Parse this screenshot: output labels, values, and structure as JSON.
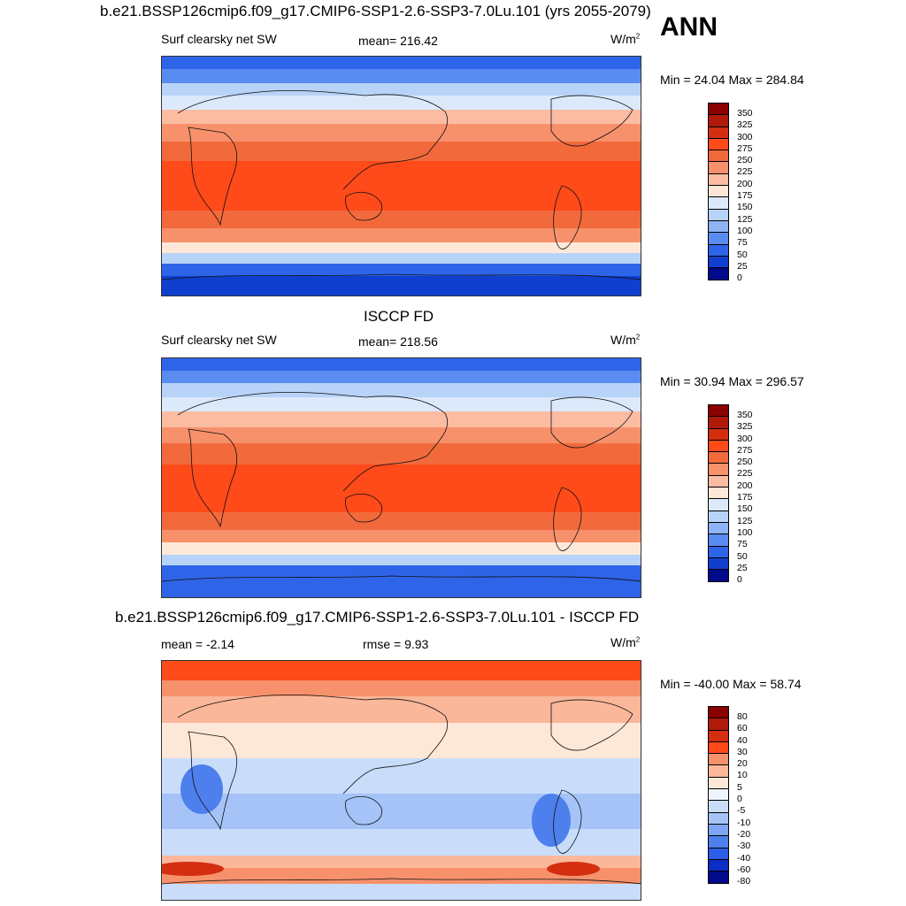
{
  "main_title": "b.e21.BSSP126cmip6.f09_g17.CMIP6-SSP1-2.6-SSP3-7.0Lu.101 (yrs 2055-2079)",
  "season": "ANN",
  "panels": [
    {
      "title": "",
      "left_label": "Surf clearsky net SW",
      "center_label": "mean= 216.42",
      "units": "W/m",
      "units_sup": "2",
      "minmax": "Min =  24.04 Max = 284.84",
      "colorbar_labels": [
        "350",
        "325",
        "300",
        "275",
        "250",
        "225",
        "200",
        "175",
        "150",
        "125",
        "100",
        "75",
        "50",
        "25",
        "0"
      ]
    },
    {
      "title": "ISCCP FD",
      "left_label": "Surf clearsky net SW",
      "center_label": "mean= 218.56",
      "units": "W/m",
      "units_sup": "2",
      "minmax": "Min =  30.94 Max = 296.57",
      "colorbar_labels": [
        "350",
        "325",
        "300",
        "275",
        "250",
        "225",
        "200",
        "175",
        "150",
        "125",
        "100",
        "75",
        "50",
        "25",
        "0"
      ]
    },
    {
      "title": "b.e21.BSSP126cmip6.f09_g17.CMIP6-SSP1-2.6-SSP3-7.0Lu.101 - ISCCP FD",
      "left_label": "mean =  -2.14",
      "center_label": "rmse =   9.93",
      "units": "W/m",
      "units_sup": "2",
      "minmax": "Min = -40.00 Max =  58.74",
      "colorbar_labels": [
        "80",
        "60",
        "40",
        "30",
        "20",
        "10",
        "5",
        "0",
        "-5",
        "-10",
        "-20",
        "-30",
        "-40",
        "-60",
        "-80"
      ]
    }
  ],
  "colors": {
    "abs_scale": [
      "#8b0000",
      "#b01a0a",
      "#d42e10",
      "#ff4a1a",
      "#f26a3c",
      "#f6916b",
      "#fbbca2",
      "#fde8d8",
      "#dbe9fb",
      "#b8d3f8",
      "#8fb3f5",
      "#5a8bf0",
      "#2e64e8",
      "#103fcf",
      "#000a8a"
    ],
    "diff_scale": [
      "#8b0000",
      "#b01a0a",
      "#d42e10",
      "#ff4a1a",
      "#f6916b",
      "#fab79a",
      "#fde8d8",
      "#f0f4ff",
      "#c9ddfb",
      "#a5c3f7",
      "#7ea6f3",
      "#4d80ed",
      "#2b5de6",
      "#0b2fc2",
      "#000a8a"
    ]
  }
}
